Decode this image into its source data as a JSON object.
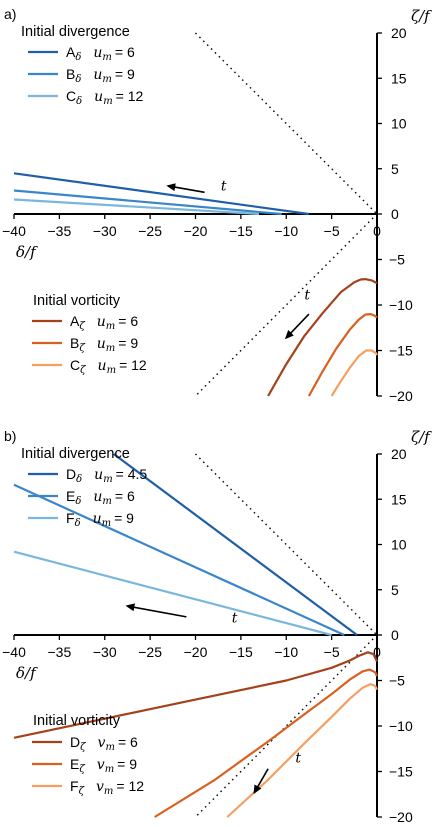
{
  "chart_data": [
    {
      "panel": "a)",
      "type": "line",
      "xlim": [
        -40,
        0
      ],
      "ylim": [
        -20,
        20
      ],
      "x_ticks": [
        -40,
        -35,
        -30,
        -25,
        -20,
        -15,
        -10,
        -5,
        0
      ],
      "x_tick_labels": [
        "−40",
        "−35",
        "−30",
        "−25",
        "−20",
        "−15",
        "−10",
        "−5",
        "0"
      ],
      "y_ticks_top": [
        20,
        15,
        10,
        5,
        0
      ],
      "y_ticks_bottom": [
        -5,
        -10,
        -15,
        -20
      ],
      "y_tick_labels_top": [
        "20",
        "15",
        "10",
        "5",
        "0"
      ],
      "y_tick_labels_bottom": [
        "−5",
        "−10",
        "−15",
        "−20"
      ],
      "xlabel": "δ/f",
      "ylabel": "ζ/f",
      "arrow_label": "t",
      "legend_divergence": {
        "title": "Initial divergence",
        "entries": [
          {
            "sym": "A",
            "sub": "δ",
            "var": "u",
            "vsub": "m",
            "val": "= 6",
            "color": "#1f5ea8"
          },
          {
            "sym": "B",
            "sub": "δ",
            "var": "u",
            "vsub": "m",
            "val": "= 9",
            "color": "#3a86c8"
          },
          {
            "sym": "C",
            "sub": "δ",
            "var": "u",
            "vsub": "m",
            "val": "= 12",
            "color": "#7ab6de"
          }
        ]
      },
      "legend_vorticity": {
        "title": "Initial vorticity",
        "entries": [
          {
            "sym": "A",
            "sub": "ζ",
            "var": "u",
            "vsub": "m",
            "val": "= 6",
            "color": "#a6421a"
          },
          {
            "sym": "B",
            "sub": "ζ",
            "var": "u",
            "vsub": "m",
            "val": "= 9",
            "color": "#d9601e"
          },
          {
            "sym": "C",
            "sub": "ζ",
            "var": "u",
            "vsub": "m",
            "val": "= 12",
            "color": "#f5a060"
          }
        ]
      },
      "series": [
        {
          "color": "#1f5ea8",
          "x": [
            -40,
            -7.5
          ],
          "y": [
            4.5,
            0
          ]
        },
        {
          "color": "#3a86c8",
          "x": [
            -40,
            -10.5
          ],
          "y": [
            2.6,
            0
          ]
        },
        {
          "color": "#7ab6de",
          "x": [
            -40,
            -13
          ],
          "y": [
            1.6,
            0
          ]
        },
        {
          "color": "#a6421a",
          "x": [
            -12,
            -10,
            -8,
            -6,
            -4,
            -2.5,
            -1.8,
            -1.3,
            -0.6,
            0
          ],
          "y": [
            -20,
            -16.5,
            -13.4,
            -10.9,
            -8.6,
            -7.5,
            -7.2,
            -7.15,
            -7.3,
            -7.6
          ]
        },
        {
          "color": "#d9601e",
          "x": [
            -7.5,
            -6,
            -4.5,
            -3,
            -2,
            -1.3,
            -0.7,
            -0.2,
            0
          ],
          "y": [
            -20,
            -17.3,
            -14.8,
            -12.7,
            -11.6,
            -11.05,
            -11.0,
            -11.2,
            -11.4
          ]
        },
        {
          "color": "#f5a060",
          "x": [
            -5,
            -4,
            -3,
            -2,
            -1.2,
            -0.6,
            -0.1,
            0
          ],
          "y": [
            -20,
            -18.4,
            -16.9,
            -15.6,
            -15.0,
            -15.0,
            -15.3,
            -15.5
          ]
        }
      ],
      "guides": [
        {
          "x": [
            -20,
            0
          ],
          "y": [
            20,
            0
          ]
        },
        {
          "x": [
            0,
            -20
          ],
          "y": [
            0,
            -20
          ]
        }
      ],
      "arrows": [
        {
          "x": [
            -19,
            -23
          ],
          "y": [
            2.4,
            3.1
          ],
          "label": "t",
          "label_at": [
            -17.2,
            2.6
          ]
        },
        {
          "x": [
            -7.5,
            -10
          ],
          "y": [
            -11,
            -13.6
          ],
          "label": "t",
          "label_at": [
            -8,
            -9.4
          ]
        }
      ]
    },
    {
      "panel": "b)",
      "type": "line",
      "xlim": [
        -40,
        0
      ],
      "ylim": [
        -20,
        20
      ],
      "x_ticks": [
        -40,
        -35,
        -30,
        -25,
        -20,
        -15,
        -10,
        -5,
        0
      ],
      "x_tick_labels": [
        "−40",
        "−35",
        "−30",
        "−25",
        "−20",
        "−15",
        "−10",
        "−5",
        "0"
      ],
      "y_ticks_top": [
        20,
        15,
        10,
        5,
        0
      ],
      "y_ticks_bottom": [
        -5,
        -10,
        -15,
        -20
      ],
      "y_tick_labels_top": [
        "20",
        "15",
        "10",
        "5",
        "0"
      ],
      "y_tick_labels_bottom": [
        "−5",
        "−10",
        "−15",
        "−20"
      ],
      "xlabel": "δ/f",
      "ylabel": "ζ/f",
      "arrow_label": "t",
      "legend_divergence": {
        "title": "Initial divergence",
        "entries": [
          {
            "sym": "D",
            "sub": "δ",
            "var": "u",
            "vsub": "m",
            "val": "= 4.5",
            "color": "#1f5ea8"
          },
          {
            "sym": "E",
            "sub": "δ",
            "var": "u",
            "vsub": "m",
            "val": "= 6",
            "color": "#3a86c8"
          },
          {
            "sym": "F",
            "sub": "δ",
            "var": "u",
            "vsub": "m",
            "val": "= 9",
            "color": "#7ab6de"
          }
        ]
      },
      "legend_vorticity": {
        "title": "Initial vorticity",
        "entries": [
          {
            "sym": "D",
            "sub": "ζ",
            "var": "v",
            "vsub": "m",
            "val": "= 6",
            "color": "#a6421a"
          },
          {
            "sym": "E",
            "sub": "ζ",
            "var": "v",
            "vsub": "m",
            "val": "= 9",
            "color": "#d9601e"
          },
          {
            "sym": "F",
            "sub": "ζ",
            "var": "v",
            "vsub": "m",
            "val": "= 12",
            "color": "#f5a060"
          }
        ]
      },
      "series": [
        {
          "color": "#1f5ea8",
          "x": [
            -29,
            -2.2
          ],
          "y": [
            20,
            0
          ]
        },
        {
          "color": "#3a86c8",
          "x": [
            -40,
            -3.6
          ],
          "y": [
            16.6,
            0
          ]
        },
        {
          "color": "#7ab6de",
          "x": [
            -40,
            -5
          ],
          "y": [
            9.2,
            0
          ]
        },
        {
          "color": "#a6421a",
          "x": [
            -40,
            -20,
            -10,
            -5,
            -3,
            -2,
            -1,
            -0.4,
            0
          ],
          "y": [
            -11.3,
            -7.1,
            -5.0,
            -3.6,
            -2.8,
            -2.3,
            -1.9,
            -2.1,
            -2.9
          ]
        },
        {
          "color": "#d9601e",
          "x": [
            -24.5,
            -18,
            -12,
            -8,
            -5,
            -3,
            -1.6,
            -0.8,
            -0.2,
            0
          ],
          "y": [
            -20,
            -16,
            -11.7,
            -8.7,
            -6.5,
            -4.9,
            -4.0,
            -3.8,
            -4.1,
            -4.5
          ]
        },
        {
          "color": "#f5a060",
          "x": [
            -16.5,
            -12,
            -8,
            -5,
            -3,
            -1.6,
            -0.7,
            -0.2,
            0
          ],
          "y": [
            -20,
            -15.9,
            -11.9,
            -9.0,
            -7.0,
            -5.8,
            -5.4,
            -5.6,
            -6.0
          ]
        }
      ],
      "guides": [
        {
          "x": [
            -20,
            0
          ],
          "y": [
            20,
            0
          ]
        },
        {
          "x": [
            0,
            -20
          ],
          "y": [
            0,
            -20
          ]
        }
      ],
      "arrows": [
        {
          "x": [
            -21,
            -27.5
          ],
          "y": [
            2.0,
            3.2
          ],
          "label": "t",
          "label_at": [
            -16,
            1.4
          ]
        },
        {
          "x": [
            -12,
            -13.5
          ],
          "y": [
            -14.7,
            -17.3
          ],
          "label": "t",
          "label_at": [
            -9,
            -14
          ]
        }
      ]
    }
  ]
}
